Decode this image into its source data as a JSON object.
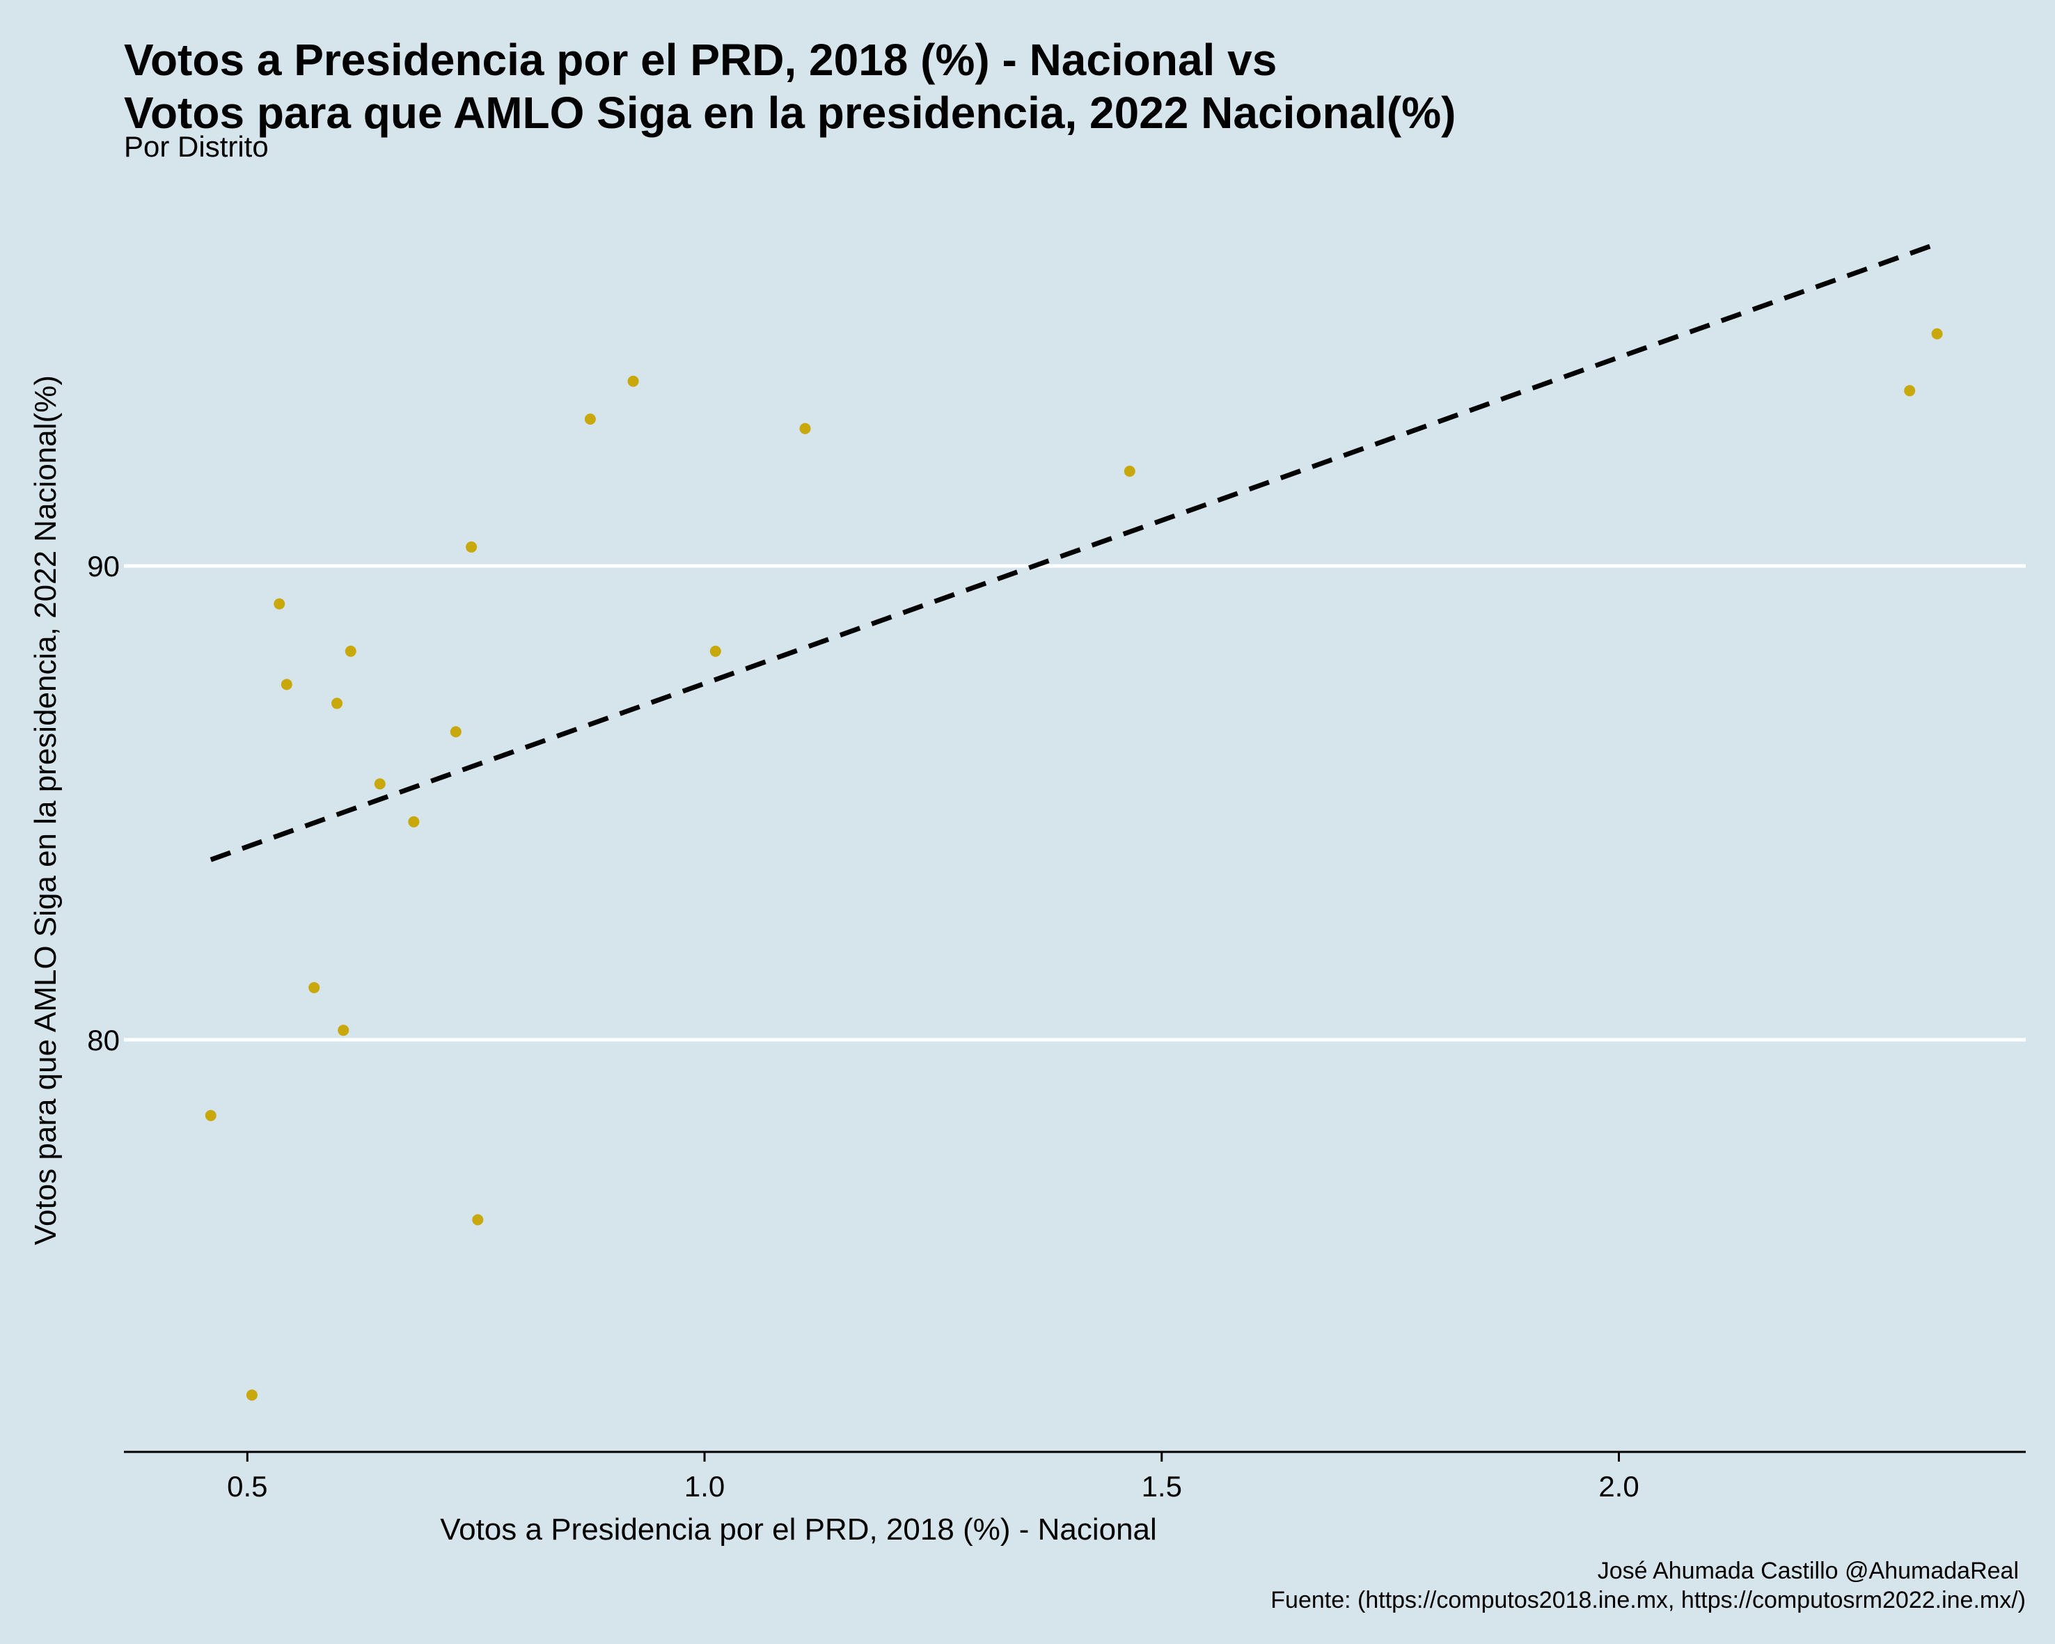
{
  "chart_data": {
    "type": "scatter",
    "title_line1": "Votos a Presidencia por el PRD, 2018 (%) - Nacional vs",
    "title_line2": "Votos para que AMLO Siga en la presidencia, 2022 Nacional(%)",
    "subtitle": "Por Distrito",
    "xlabel": "Votos a Presidencia por el PRD, 2018 (%) - Nacional",
    "ylabel": "Votos para que AMLO Siga en la presidencia, 2022 Nacional(%)",
    "caption_line1": "José Ahumada Castillo @AhumadaReal",
    "caption_line2": "Fuente: (https://computos2018.ine.mx, https://computosrm2022.ine.mx/)",
    "xlim": [
      0.365,
      2.445
    ],
    "ylim": [
      71.3,
      98.2
    ],
    "x_ticks": [
      {
        "value": 0.5,
        "label": "0.5"
      },
      {
        "value": 1.0,
        "label": "1.0"
      },
      {
        "value": 1.5,
        "label": "1.5"
      },
      {
        "value": 2.0,
        "label": "2.0"
      }
    ],
    "y_ticks": [
      {
        "value": 80,
        "label": "80"
      },
      {
        "value": 90,
        "label": "90"
      }
    ],
    "grid": "horizontal major lines only",
    "point_color": "#c9a80b",
    "trend_color": "#000000",
    "points": [
      {
        "x": 0.46,
        "y": 78.4
      },
      {
        "x": 0.505,
        "y": 72.5
      },
      {
        "x": 0.535,
        "y": 89.2
      },
      {
        "x": 0.543,
        "y": 87.5
      },
      {
        "x": 0.573,
        "y": 81.1
      },
      {
        "x": 0.598,
        "y": 87.1
      },
      {
        "x": 0.605,
        "y": 80.2
      },
      {
        "x": 0.613,
        "y": 88.2
      },
      {
        "x": 0.645,
        "y": 85.4
      },
      {
        "x": 0.682,
        "y": 84.6
      },
      {
        "x": 0.728,
        "y": 86.5
      },
      {
        "x": 0.745,
        "y": 90.4
      },
      {
        "x": 0.752,
        "y": 76.2
      },
      {
        "x": 0.875,
        "y": 93.1
      },
      {
        "x": 0.922,
        "y": 93.9
      },
      {
        "x": 1.012,
        "y": 88.2
      },
      {
        "x": 1.11,
        "y": 92.9
      },
      {
        "x": 1.465,
        "y": 92.0
      },
      {
        "x": 2.318,
        "y": 93.7
      },
      {
        "x": 2.348,
        "y": 94.9
      }
    ],
    "trend_line": {
      "style": "dashed",
      "x": [
        0.46,
        2.348
      ],
      "y": [
        83.8,
        96.8
      ]
    }
  }
}
